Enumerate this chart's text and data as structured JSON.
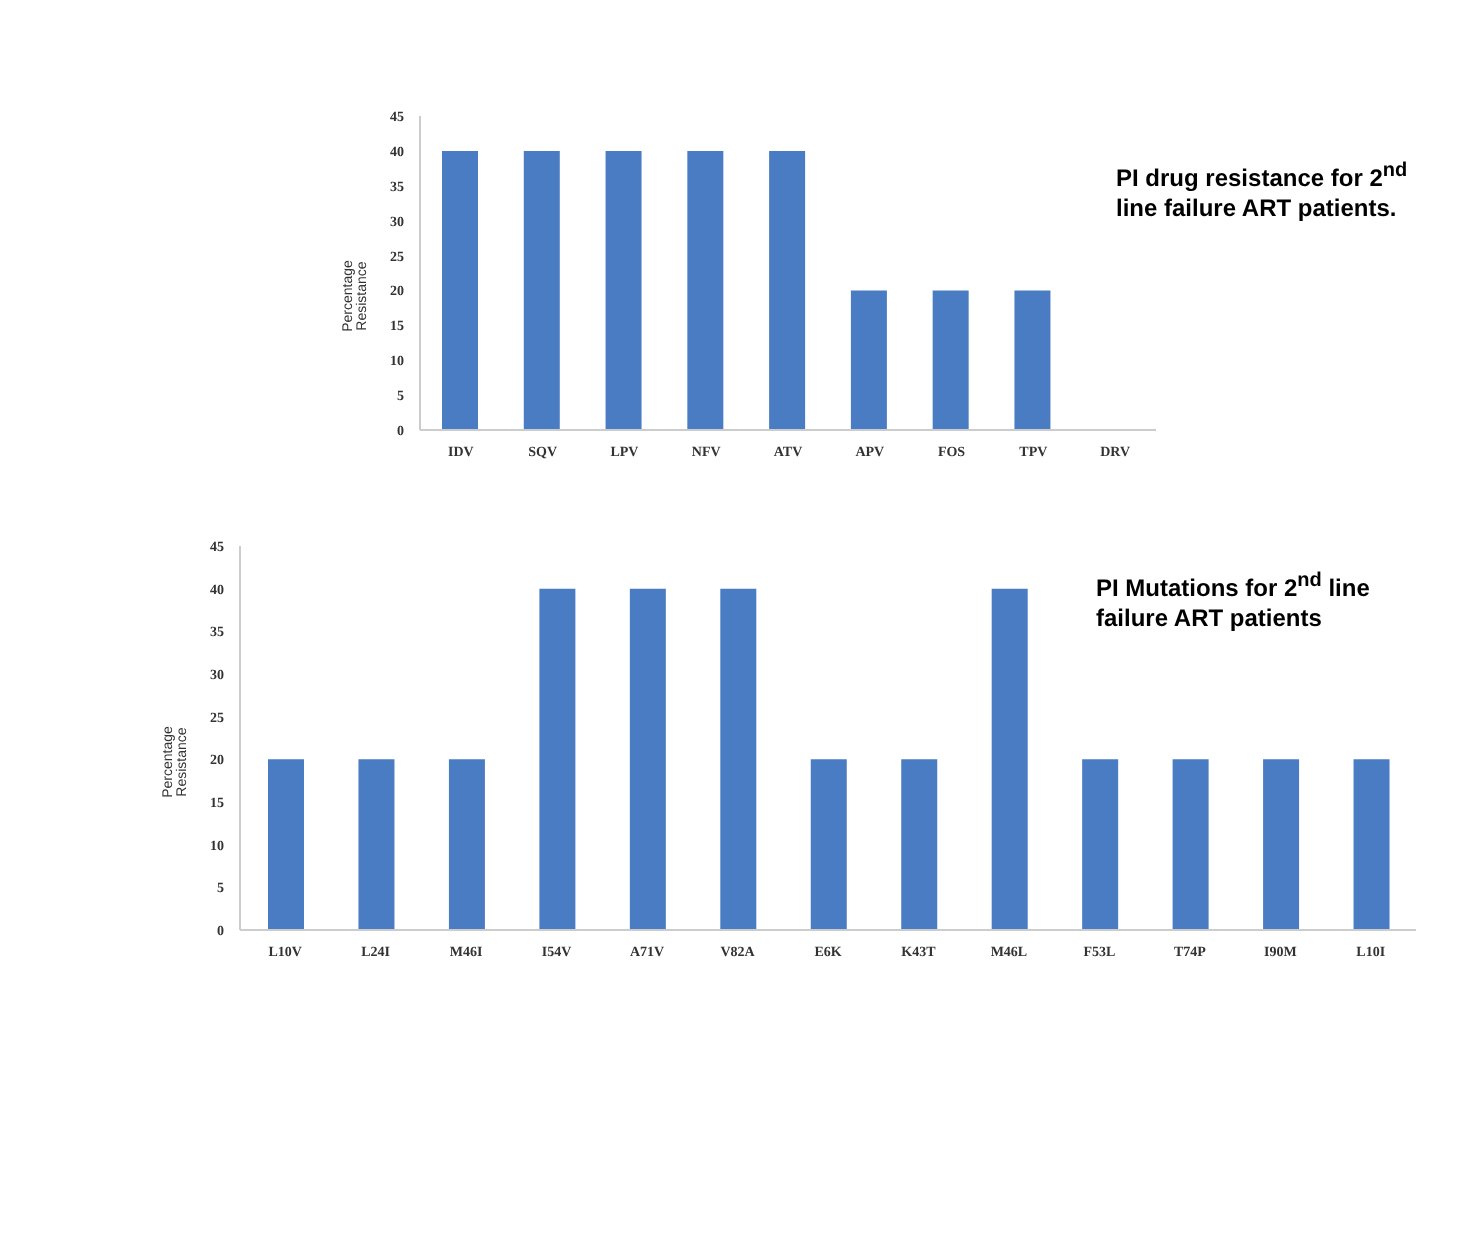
{
  "chart_data": [
    {
      "type": "bar",
      "title": "PI drug resistance for 2$^{nd}$ line failure ART patients.",
      "ylabel": "Percentage Resistance",
      "categories": [
        "IDV",
        "SQV",
        "LPV",
        "NFV",
        "ATV",
        "APV",
        "FOS",
        "TPV",
        "DRV"
      ],
      "values": [
        40,
        40,
        40,
        40,
        40,
        20,
        20,
        20,
        0
      ],
      "color": "#4a7cc3",
      "ylim": [
        0,
        45
      ],
      "yticks": [
        0,
        5,
        10,
        15,
        20,
        25,
        30,
        35,
        40,
        45
      ],
      "grid": false,
      "legend": false
    },
    {
      "type": "bar",
      "title": "PI Mutations for 2$^{nd}$ line failure ART patients",
      "ylabel": "Percentage Resistance",
      "categories": [
        "L10V",
        "L24I",
        "M46I",
        "I54V",
        "A71V",
        "V82A",
        "E6K",
        "K43T",
        "M46L",
        "F53L",
        "T74P",
        "I90M",
        "L10I"
      ],
      "values": [
        20,
        20,
        20,
        40,
        40,
        40,
        20,
        20,
        40,
        20,
        20,
        20,
        20
      ],
      "color": "#4a7cc3",
      "ylim": [
        0,
        45
      ],
      "yticks": [
        0,
        5,
        10,
        15,
        20,
        25,
        30,
        35,
        40,
        45
      ],
      "grid": false,
      "legend": false
    }
  ]
}
